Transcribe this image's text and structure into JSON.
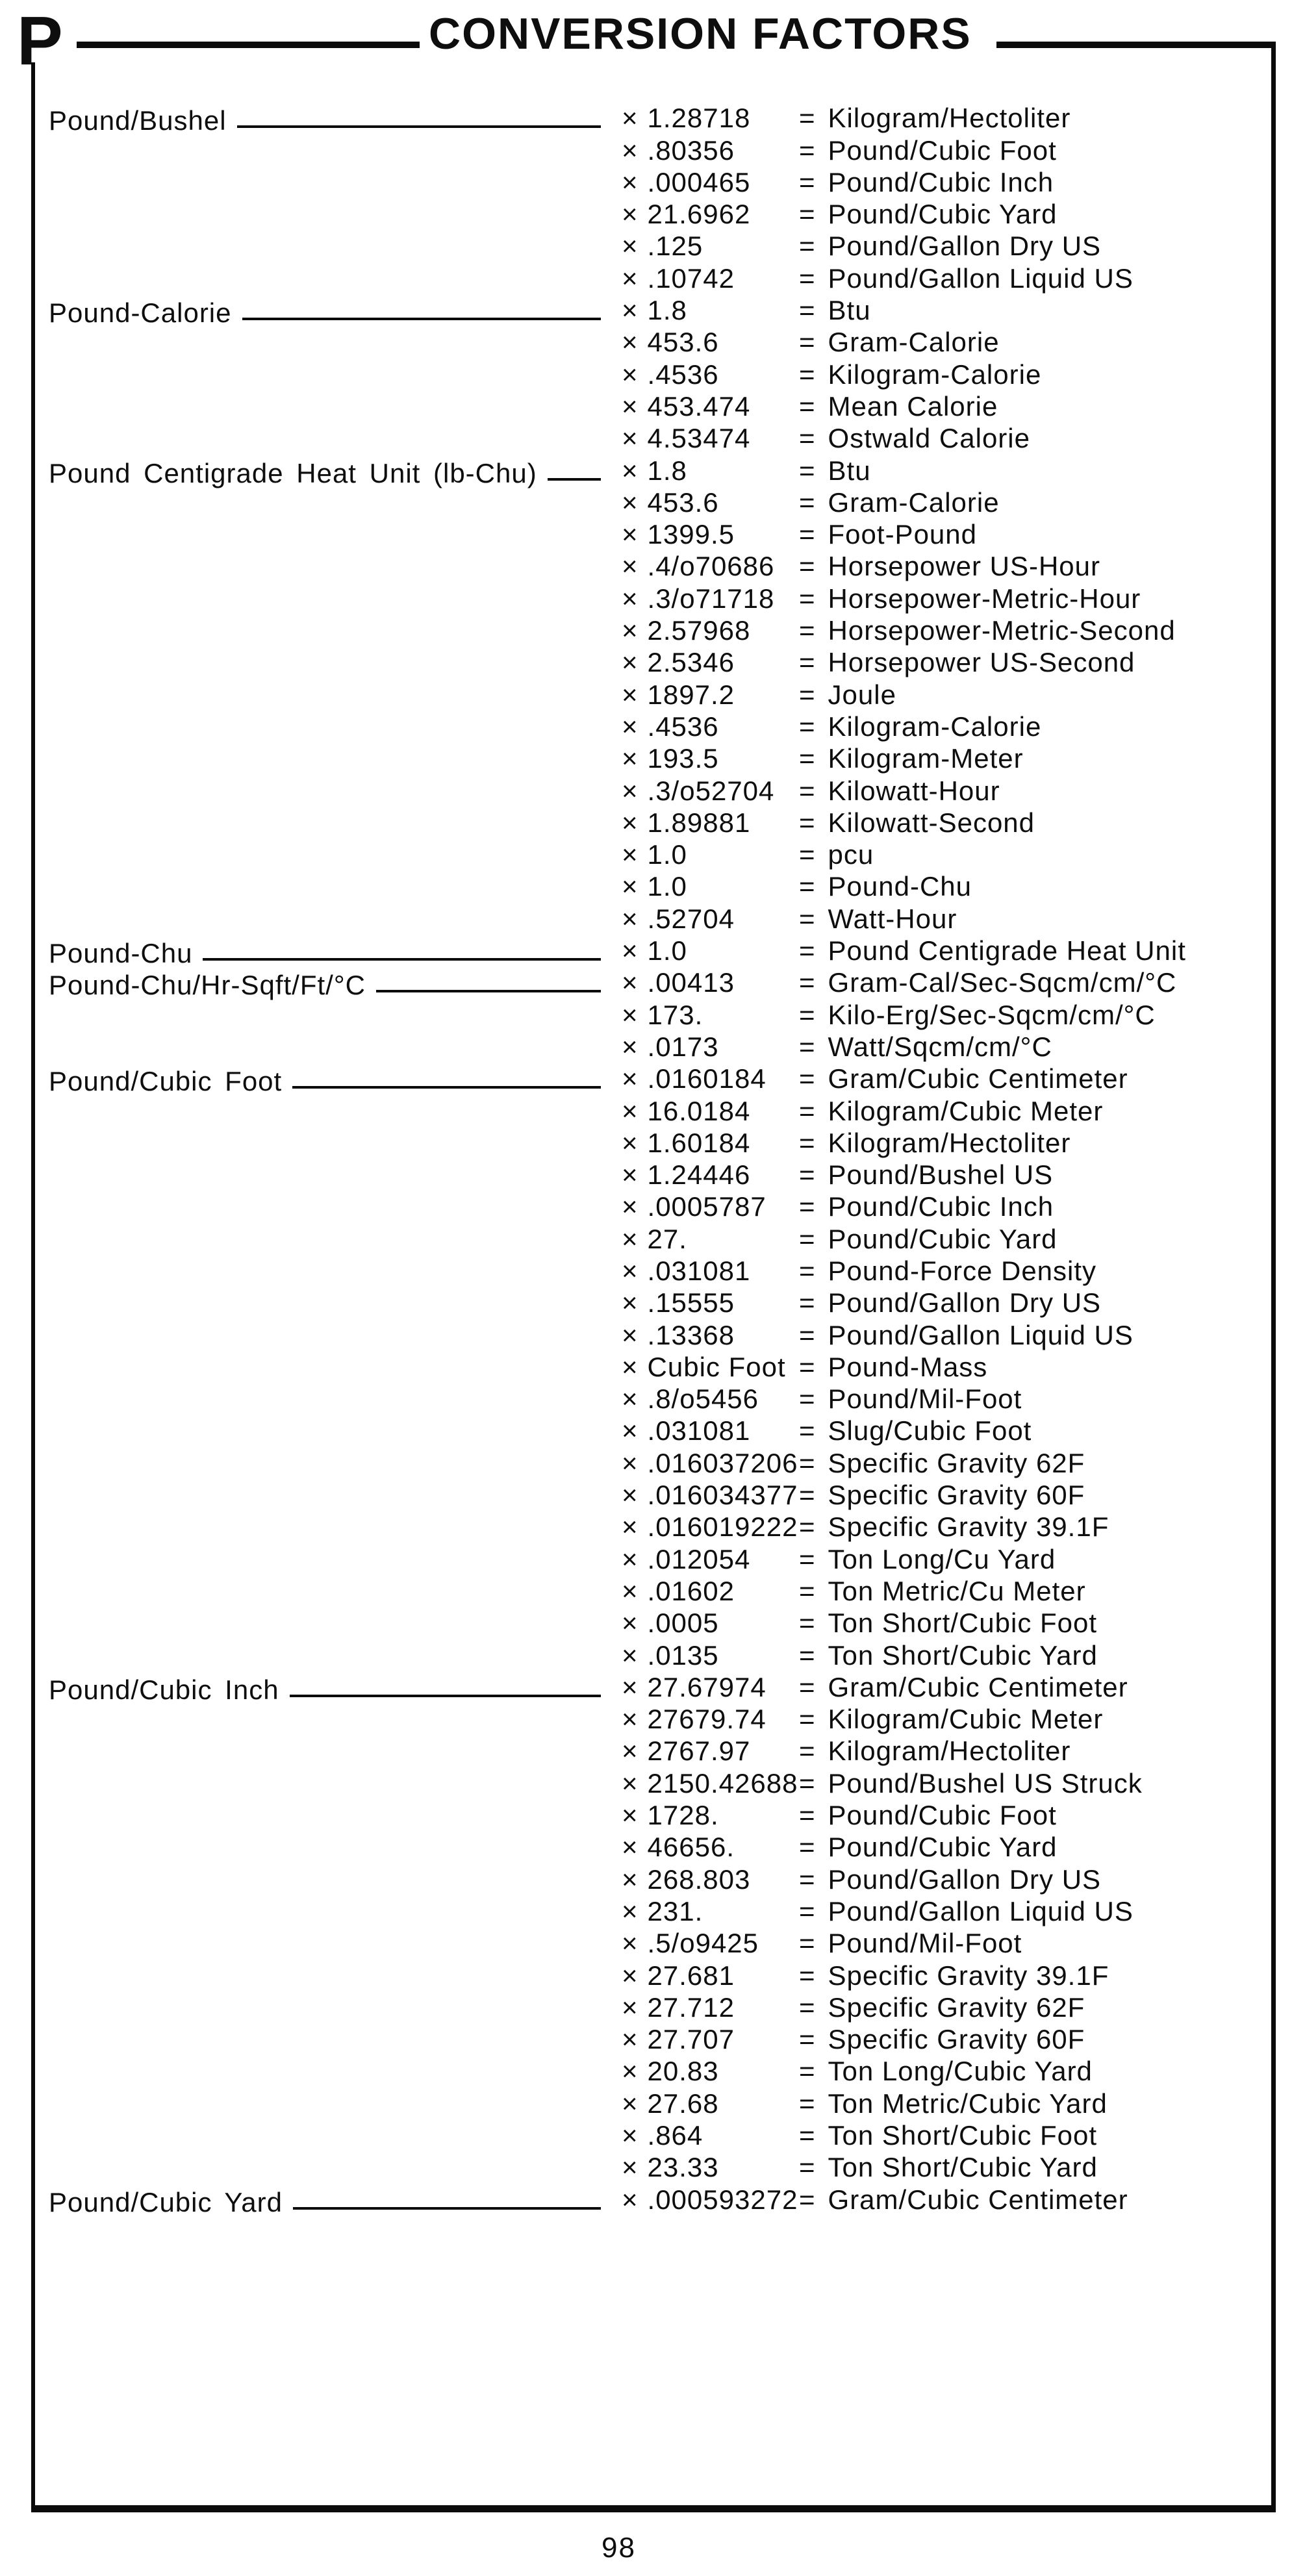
{
  "page": {
    "section_letter": "P",
    "title": "CONVERSION FACTORS",
    "page_number": "98"
  },
  "symbols": {
    "multiply": "×",
    "equals": "="
  },
  "table": {
    "groups": [
      {
        "unit": "Pound/Bushel",
        "rows": [
          {
            "factor": "1.28718",
            "result": "Kilogram/Hectoliter"
          },
          {
            "factor": ".80356",
            "result": "Pound/Cubic Foot"
          },
          {
            "factor": ".000465",
            "result": "Pound/Cubic Inch"
          },
          {
            "factor": "21.6962",
            "result": "Pound/Cubic Yard"
          },
          {
            "factor": ".125",
            "result": "Pound/Gallon Dry US"
          },
          {
            "factor": ".10742",
            "result": "Pound/Gallon Liquid US"
          }
        ]
      },
      {
        "unit": "Pound-Calorie",
        "rows": [
          {
            "factor": "1.8",
            "result": "Btu"
          },
          {
            "factor": "453.6",
            "result": "Gram-Calorie"
          },
          {
            "factor": ".4536",
            "result": "Kilogram-Calorie"
          },
          {
            "factor": "453.474",
            "result": "Mean Calorie"
          },
          {
            "factor": "4.53474",
            "result": "Ostwald Calorie"
          }
        ]
      },
      {
        "unit": "Pound Centigrade Heat Unit (lb-Chu)",
        "rows": [
          {
            "factor": "1.8",
            "result": "Btu"
          },
          {
            "factor": "453.6",
            "result": "Gram-Calorie"
          },
          {
            "factor": "1399.5",
            "result": "Foot-Pound"
          },
          {
            "factor": ".4/o70686",
            "result": "Horsepower US-Hour"
          },
          {
            "factor": ".3/o71718",
            "result": "Horsepower-Metric-Hour"
          },
          {
            "factor": "2.57968",
            "result": "Horsepower-Metric-Second"
          },
          {
            "factor": "2.5346",
            "result": "Horsepower US-Second"
          },
          {
            "factor": "1897.2",
            "result": "Joule"
          },
          {
            "factor": ".4536",
            "result": "Kilogram-Calorie"
          },
          {
            "factor": "193.5",
            "result": "Kilogram-Meter"
          },
          {
            "factor": ".3/o52704",
            "result": "Kilowatt-Hour"
          },
          {
            "factor": "1.89881",
            "result": "Kilowatt-Second"
          },
          {
            "factor": "1.0",
            "result": "pcu"
          },
          {
            "factor": "1.0",
            "result": "Pound-Chu"
          },
          {
            "factor": ".52704",
            "result": "Watt-Hour"
          }
        ]
      },
      {
        "unit": "Pound-Chu",
        "rows": [
          {
            "factor": "1.0",
            "result": "Pound Centigrade Heat Unit"
          }
        ]
      },
      {
        "unit": "Pound-Chu/Hr-Sqft/Ft/°C",
        "rows": [
          {
            "factor": ".00413",
            "result": "Gram-Cal/Sec-Sqcm/cm/°C"
          },
          {
            "factor": "173.",
            "result": "Kilo-Erg/Sec-Sqcm/cm/°C"
          },
          {
            "factor": ".0173",
            "result": "Watt/Sqcm/cm/°C"
          }
        ]
      },
      {
        "unit": "Pound/Cubic Foot",
        "rows": [
          {
            "factor": ".0160184",
            "result": "Gram/Cubic Centimeter"
          },
          {
            "factor": "16.0184",
            "result": "Kilogram/Cubic Meter"
          },
          {
            "factor": "1.60184",
            "result": "Kilogram/Hectoliter"
          },
          {
            "factor": "1.24446",
            "result": "Pound/Bushel US"
          },
          {
            "factor": ".0005787",
            "result": "Pound/Cubic Inch"
          },
          {
            "factor": "27.",
            "result": "Pound/Cubic Yard"
          },
          {
            "factor": ".031081",
            "result": "Pound-Force Density"
          },
          {
            "factor": ".15555",
            "result": "Pound/Gallon Dry US"
          },
          {
            "factor": ".13368",
            "result": "Pound/Gallon Liquid US"
          },
          {
            "factor": "Cubic Foot",
            "result": "Pound-Mass"
          },
          {
            "factor": ".8/o5456",
            "result": "Pound/Mil-Foot"
          },
          {
            "factor": ".031081",
            "result": "Slug/Cubic Foot"
          },
          {
            "factor": ".016037206",
            "result": "Specific Gravity 62F"
          },
          {
            "factor": ".016034377",
            "result": "Specific Gravity 60F"
          },
          {
            "factor": ".016019222",
            "result": "Specific Gravity 39.1F"
          },
          {
            "factor": ".012054",
            "result": "Ton Long/Cu Yard"
          },
          {
            "factor": ".01602",
            "result": "Ton Metric/Cu Meter"
          },
          {
            "factor": ".0005",
            "result": "Ton Short/Cubic Foot"
          },
          {
            "factor": ".0135",
            "result": "Ton Short/Cubic Yard"
          }
        ]
      },
      {
        "unit": "Pound/Cubic Inch",
        "rows": [
          {
            "factor": "27.67974",
            "result": "Gram/Cubic Centimeter"
          },
          {
            "factor": "27679.74",
            "result": "Kilogram/Cubic Meter"
          },
          {
            "factor": "2767.97",
            "result": "Kilogram/Hectoliter"
          },
          {
            "factor": "2150.42688",
            "result": "Pound/Bushel US Struck"
          },
          {
            "factor": "1728.",
            "result": "Pound/Cubic Foot"
          },
          {
            "factor": "46656.",
            "result": "Pound/Cubic Yard"
          },
          {
            "factor": "268.803",
            "result": "Pound/Gallon Dry US"
          },
          {
            "factor": "231.",
            "result": "Pound/Gallon Liquid US"
          },
          {
            "factor": ".5/o9425",
            "result": "Pound/Mil-Foot"
          },
          {
            "factor": "27.681",
            "result": "Specific Gravity 39.1F"
          },
          {
            "factor": "27.712",
            "result": "Specific Gravity 62F"
          },
          {
            "factor": "27.707",
            "result": "Specific Gravity 60F"
          },
          {
            "factor": "20.83",
            "result": "Ton Long/Cubic Yard"
          },
          {
            "factor": "27.68",
            "result": "Ton Metric/Cubic Yard"
          },
          {
            "factor": ".864",
            "result": "Ton Short/Cubic Foot"
          },
          {
            "factor": "23.33",
            "result": "Ton Short/Cubic Yard"
          }
        ]
      },
      {
        "unit": "Pound/Cubic Yard",
        "rows": [
          {
            "factor": ".000593272",
            "result": "Gram/Cubic Centimeter"
          }
        ]
      }
    ]
  }
}
